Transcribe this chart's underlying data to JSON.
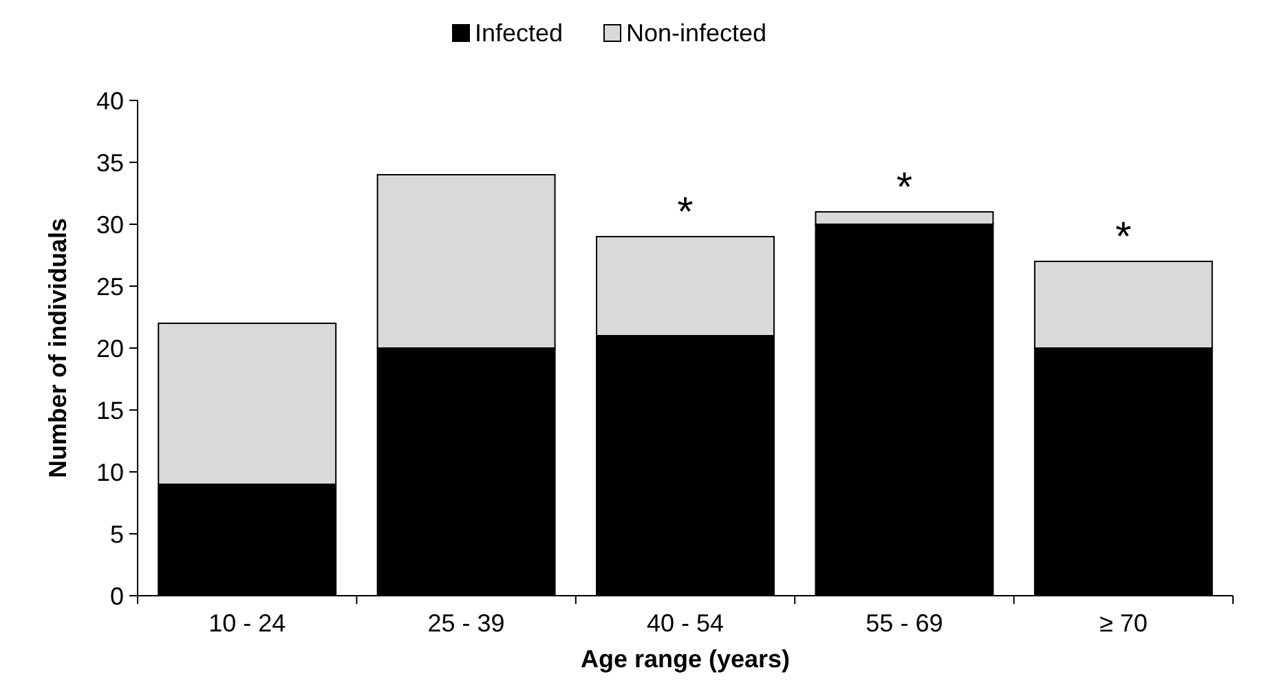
{
  "chart_data": {
    "type": "bar",
    "stacked": true,
    "xlabel": "Age range (years)",
    "ylabel": "Number of individuals",
    "categories": [
      "10 - 24",
      "25 - 39",
      "40 - 54",
      "55 - 69",
      "≥ 70"
    ],
    "series": [
      {
        "name": "Infected",
        "color": "#000000",
        "values": [
          9,
          20,
          21,
          30,
          20
        ]
      },
      {
        "name": "Non-infected",
        "color": "#d9d9d9",
        "values": [
          13,
          14,
          8,
          1,
          7
        ]
      }
    ],
    "ylim": [
      0,
      40
    ],
    "yticks": [
      0,
      5,
      10,
      15,
      20,
      25,
      30,
      35,
      40
    ],
    "grid": false,
    "legend": "top",
    "annotations": [
      {
        "text": "*",
        "x": "40 - 54",
        "y": 29
      },
      {
        "text": "*",
        "x": "55 - 69",
        "y": 31
      },
      {
        "text": "*",
        "x": "≥ 70",
        "y": 27
      }
    ]
  }
}
